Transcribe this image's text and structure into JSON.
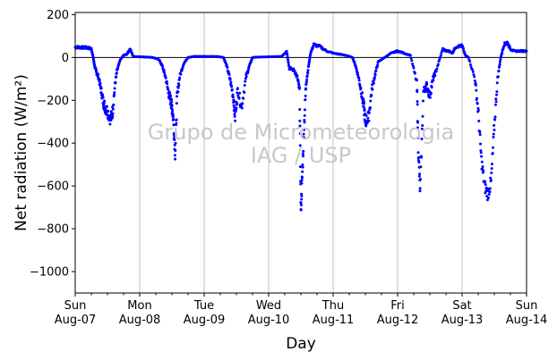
{
  "chart_data": {
    "type": "scatter",
    "title": "",
    "xlabel": "Day",
    "ylabel": "Net radiation (W/m²)",
    "ylim": [
      -1100,
      210
    ],
    "xlim": [
      0,
      7
    ],
    "x_unit": "days since Sun Aug-07 00:00",
    "grid": "vertical only",
    "zero_line": true,
    "point_color": "#0000ff",
    "yticks": [
      200,
      0,
      -200,
      -400,
      -600,
      -800,
      -1000
    ],
    "xticks": [
      {
        "x": 0,
        "line1": "Sun",
        "line2": "Aug-07"
      },
      {
        "x": 1,
        "line1": "Mon",
        "line2": "Aug-08"
      },
      {
        "x": 2,
        "line1": "Tue",
        "line2": "Aug-09"
      },
      {
        "x": 3,
        "line1": "Wed",
        "line2": "Aug-10"
      },
      {
        "x": 4,
        "line1": "Thu",
        "line2": "Aug-11"
      },
      {
        "x": 5,
        "line1": "Fri",
        "line2": "Aug-12"
      },
      {
        "x": 6,
        "line1": "Sat",
        "line2": "Aug-13"
      },
      {
        "x": 7,
        "line1": "Sun",
        "line2": "Aug-14"
      }
    ],
    "watermark": [
      "Grupo de Micrometeorologia",
      "IAG / USP"
    ],
    "series": [
      {
        "points": [
          [
            0.0,
            48
          ],
          [
            0.05,
            48
          ],
          [
            0.1,
            47
          ],
          [
            0.15,
            46
          ],
          [
            0.2,
            45
          ],
          [
            0.25,
            40
          ],
          [
            0.28,
            0
          ],
          [
            0.3,
            -40
          ],
          [
            0.33,
            -70
          ],
          [
            0.36,
            -90
          ],
          [
            0.4,
            -150
          ],
          [
            0.43,
            -200
          ],
          [
            0.46,
            -230
          ],
          [
            0.5,
            -250
          ],
          [
            0.55,
            -290
          ],
          [
            0.58,
            -250
          ],
          [
            0.62,
            -120
          ],
          [
            0.65,
            -60
          ],
          [
            0.7,
            -10
          ],
          [
            0.75,
            10
          ],
          [
            0.8,
            15
          ],
          [
            0.85,
            40
          ],
          [
            0.9,
            5
          ],
          [
            1.0,
            3
          ],
          [
            1.1,
            2
          ],
          [
            1.2,
            0
          ],
          [
            1.3,
            -10
          ],
          [
            1.35,
            -40
          ],
          [
            1.4,
            -90
          ],
          [
            1.45,
            -170
          ],
          [
            1.48,
            -200
          ],
          [
            1.5,
            -230
          ],
          [
            1.52,
            -280
          ],
          [
            1.55,
            -450
          ],
          [
            1.58,
            -180
          ],
          [
            1.62,
            -90
          ],
          [
            1.68,
            -30
          ],
          [
            1.75,
            0
          ],
          [
            1.85,
            5
          ],
          [
            2.0,
            5
          ],
          [
            2.2,
            5
          ],
          [
            2.3,
            0
          ],
          [
            2.35,
            -40
          ],
          [
            2.4,
            -100
          ],
          [
            2.45,
            -180
          ],
          [
            2.48,
            -280
          ],
          [
            2.52,
            -150
          ],
          [
            2.58,
            -230
          ],
          [
            2.65,
            -90
          ],
          [
            2.7,
            -40
          ],
          [
            2.75,
            0
          ],
          [
            2.85,
            2
          ],
          [
            3.0,
            3
          ],
          [
            3.2,
            5
          ],
          [
            3.28,
            30
          ],
          [
            3.32,
            -50
          ],
          [
            3.4,
            -60
          ],
          [
            3.45,
            -100
          ],
          [
            3.48,
            -160
          ],
          [
            3.5,
            -720
          ],
          [
            3.52,
            -560
          ],
          [
            3.55,
            -320
          ],
          [
            3.58,
            -120
          ],
          [
            3.62,
            -40
          ],
          [
            3.65,
            20
          ],
          [
            3.7,
            60
          ],
          [
            3.8,
            50
          ],
          [
            3.9,
            30
          ],
          [
            4.0,
            20
          ],
          [
            4.1,
            15
          ],
          [
            4.2,
            10
          ],
          [
            4.3,
            0
          ],
          [
            4.35,
            -40
          ],
          [
            4.4,
            -100
          ],
          [
            4.45,
            -180
          ],
          [
            4.48,
            -240
          ],
          [
            4.5,
            -300
          ],
          [
            4.55,
            -280
          ],
          [
            4.6,
            -150
          ],
          [
            4.65,
            -80
          ],
          [
            4.7,
            -20
          ],
          [
            4.8,
            0
          ],
          [
            4.9,
            20
          ],
          [
            5.0,
            30
          ],
          [
            5.1,
            20
          ],
          [
            5.2,
            10
          ],
          [
            5.3,
            -120
          ],
          [
            5.32,
            -420
          ],
          [
            5.35,
            -630
          ],
          [
            5.4,
            -160
          ],
          [
            5.45,
            -130
          ],
          [
            5.5,
            -180
          ],
          [
            5.55,
            -100
          ],
          [
            5.6,
            -60
          ],
          [
            5.7,
            40
          ],
          [
            5.75,
            30
          ],
          [
            5.8,
            30
          ],
          [
            5.85,
            20
          ],
          [
            5.9,
            50
          ],
          [
            6.0,
            55
          ],
          [
            6.05,
            10
          ],
          [
            6.1,
            0
          ],
          [
            6.2,
            -100
          ],
          [
            6.25,
            -250
          ],
          [
            6.3,
            -480
          ],
          [
            6.35,
            -600
          ],
          [
            6.4,
            -640
          ],
          [
            6.45,
            -580
          ],
          [
            6.5,
            -320
          ],
          [
            6.55,
            -100
          ],
          [
            6.6,
            0
          ],
          [
            6.65,
            60
          ],
          [
            6.7,
            70
          ],
          [
            6.75,
            40
          ],
          [
            6.8,
            30
          ],
          [
            6.9,
            30
          ],
          [
            7.0,
            30
          ]
        ]
      }
    ]
  }
}
